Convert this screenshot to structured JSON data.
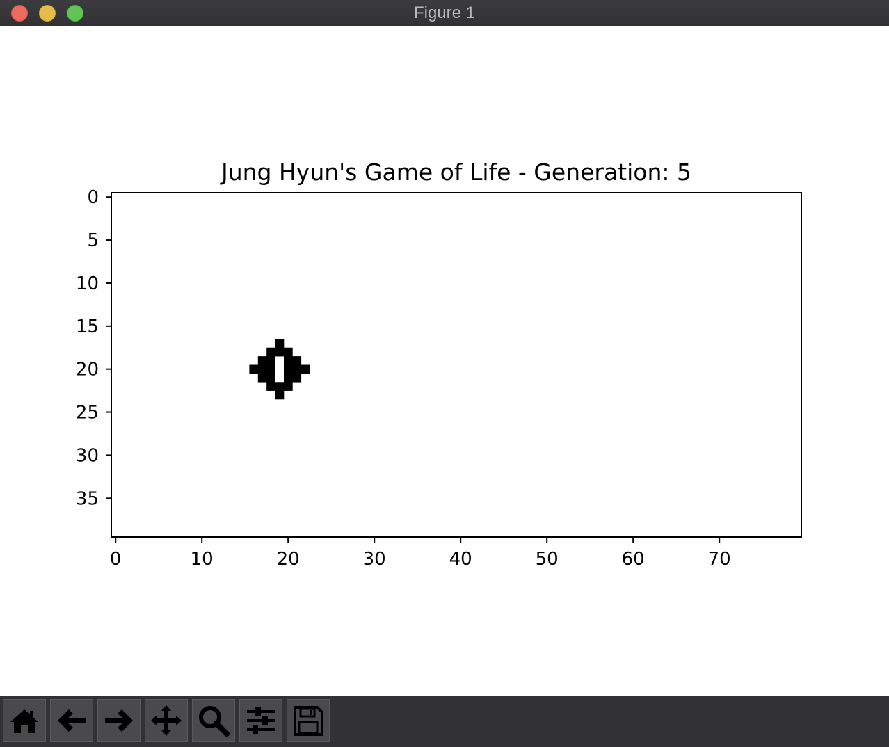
{
  "window": {
    "title": "Figure 1"
  },
  "chart_data": {
    "type": "heatmap",
    "title": "Jung Hyun's Game of Life - Generation: 5",
    "xlabel": "",
    "ylabel": "",
    "grid_size": [
      40,
      80
    ],
    "xlim": [
      -0.5,
      79.5
    ],
    "ylim": [
      39.5,
      -0.5
    ],
    "xticks": [
      0,
      10,
      20,
      30,
      40,
      50,
      60,
      70
    ],
    "yticks": [
      0,
      5,
      10,
      15,
      20,
      25,
      30,
      35
    ],
    "colormap": {
      "alive": "#000000",
      "dead": "#ffffff"
    },
    "live_cells": [
      [
        17,
        19
      ],
      [
        18,
        19
      ],
      [
        18,
        18
      ],
      [
        18,
        20
      ],
      [
        19,
        17
      ],
      [
        19,
        18
      ],
      [
        19,
        20
      ],
      [
        19,
        21
      ],
      [
        20,
        16
      ],
      [
        20,
        17
      ],
      [
        20,
        18
      ],
      [
        20,
        20
      ],
      [
        20,
        21
      ],
      [
        20,
        22
      ],
      [
        21,
        17
      ],
      [
        21,
        18
      ],
      [
        21,
        20
      ],
      [
        21,
        21
      ],
      [
        22,
        18
      ],
      [
        22,
        20
      ],
      [
        22,
        19
      ],
      [
        23,
        19
      ]
    ],
    "grid": false
  },
  "toolbar": {
    "buttons": [
      {
        "name": "home-button",
        "icon": "home-icon"
      },
      {
        "name": "back-button",
        "icon": "arrow-left-icon"
      },
      {
        "name": "forward-button",
        "icon": "arrow-right-icon"
      },
      {
        "name": "pan-button",
        "icon": "move-icon"
      },
      {
        "name": "zoom-button",
        "icon": "magnifier-icon"
      },
      {
        "name": "configure-subplots-button",
        "icon": "sliders-icon"
      },
      {
        "name": "save-button",
        "icon": "floppy-disk-icon"
      }
    ]
  }
}
